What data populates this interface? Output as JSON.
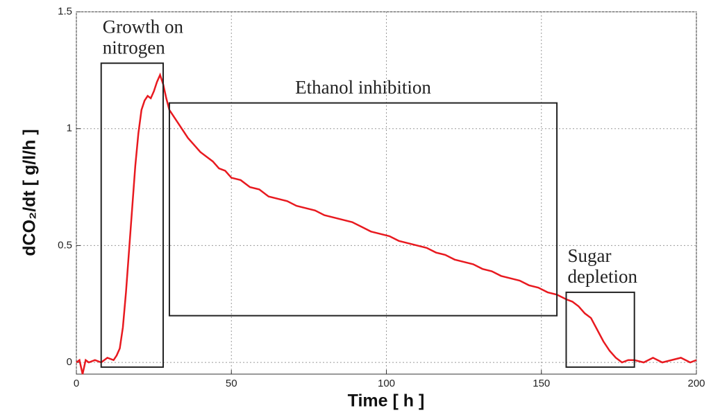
{
  "chart_data": {
    "type": "line",
    "x_label": "Time  [ h ]",
    "y_label": "dCO₂/dt  [ g/l/h ]",
    "xlim": [
      0,
      200
    ],
    "ylim": [
      -0.05,
      1.5
    ],
    "xticks": [
      0,
      50,
      100,
      150,
      200
    ],
    "yticks": [
      0,
      0.5,
      1,
      1.5
    ],
    "grid": true,
    "x": [
      0,
      1,
      2,
      3,
      4,
      6,
      8,
      10,
      12,
      13,
      14,
      15,
      16,
      17,
      18,
      19,
      20,
      21,
      22,
      23,
      24,
      25,
      26,
      27,
      28,
      29,
      30,
      32,
      34,
      36,
      38,
      40,
      42,
      44,
      46,
      48,
      50,
      53,
      56,
      59,
      62,
      65,
      68,
      71,
      74,
      77,
      80,
      83,
      86,
      89,
      92,
      95,
      98,
      101,
      104,
      107,
      110,
      113,
      116,
      119,
      122,
      125,
      128,
      131,
      134,
      137,
      140,
      143,
      146,
      149,
      152,
      155,
      158,
      160,
      162,
      164,
      166,
      168,
      170,
      172,
      174,
      176,
      178,
      180,
      183,
      186,
      189,
      192,
      195,
      198,
      200
    ],
    "series": [
      {
        "name": "dCO2/dt",
        "color": "#e8191f",
        "values": [
          0.0,
          0.01,
          -0.05,
          0.01,
          0.0,
          0.01,
          0.0,
          0.02,
          0.01,
          0.03,
          0.06,
          0.15,
          0.3,
          0.48,
          0.66,
          0.84,
          0.98,
          1.08,
          1.12,
          1.14,
          1.13,
          1.16,
          1.2,
          1.23,
          1.19,
          1.13,
          1.08,
          1.04,
          1.0,
          0.96,
          0.93,
          0.9,
          0.88,
          0.86,
          0.83,
          0.82,
          0.79,
          0.78,
          0.75,
          0.74,
          0.71,
          0.7,
          0.69,
          0.67,
          0.66,
          0.65,
          0.63,
          0.62,
          0.61,
          0.6,
          0.58,
          0.56,
          0.55,
          0.54,
          0.52,
          0.51,
          0.5,
          0.49,
          0.47,
          0.46,
          0.44,
          0.43,
          0.42,
          0.4,
          0.39,
          0.37,
          0.36,
          0.35,
          0.33,
          0.32,
          0.3,
          0.29,
          0.27,
          0.26,
          0.24,
          0.21,
          0.19,
          0.14,
          0.09,
          0.05,
          0.02,
          0.0,
          0.01,
          0.01,
          0.0,
          0.02,
          0.0,
          0.01,
          0.02,
          0.0,
          0.01
        ]
      }
    ],
    "annotations": [
      {
        "lines": [
          "Growth on",
          "nitrogen"
        ],
        "xrange": [
          8,
          28
        ],
        "yrange": [
          -0.02,
          1.28
        ]
      },
      {
        "lines": [
          "Ethanol inhibition"
        ],
        "xrange": [
          30,
          155
        ],
        "yrange": [
          0.2,
          1.11
        ]
      },
      {
        "lines": [
          "Sugar",
          "depletion"
        ],
        "xrange": [
          158,
          180
        ],
        "yrange": [
          -0.02,
          0.3
        ]
      }
    ]
  }
}
